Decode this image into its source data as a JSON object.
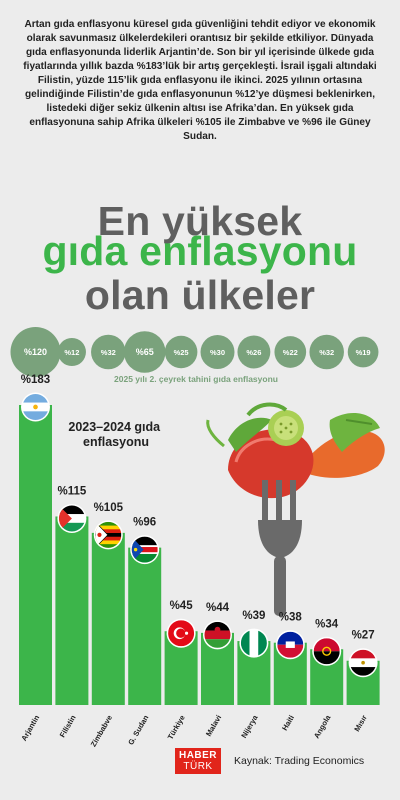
{
  "intro": "Artan gıda enflasyonu küresel gıda güvenliğini tehdit ediyor ve ekonomik olarak savunmasız ülkelerdekileri orantısız bir şekilde etkiliyor. Dünyada gıda enflasyonunda liderlik Arjantin’de. Son bir yıl içerisinde ülkede gıda fiyatlarında yıllık bazda %183’lük bir artış gerçekleşti. İsrail işgali altındaki Filistin, yüzde 115’lik gıda enflasyonu ile ikinci. 2025 yılının ortasına gelindiğinde Filistin’de gıda enflasyonunun %12’ye düşmesi beklenirken, listedeki diğer sekiz ülkenin altısı ise Afrika’dan. En yüksek gıda enflasyonuna sahip Afrika ülkeleri %105 ile Zimbabve ve %96 ile Güney Sudan.",
  "headline": {
    "line1": "En yüksek",
    "line2": "gıda enflasyonu",
    "line3": "olan ülkeler"
  },
  "colors": {
    "bar": "#3cb54a",
    "bubble": "#7aa27c",
    "headline_green": "#3cb54a",
    "headline_gray": "#5f5f5f",
    "logo": "#e1251b"
  },
  "chart_data": {
    "type": "bar",
    "title": "2023–2024 gıda enflasyonu",
    "categories": [
      "Arjantin",
      "Filistin",
      "Zimbabve",
      "G. Sudan",
      "Türkiye",
      "Malavi",
      "Nijerya",
      "Haiti",
      "Angola",
      "Mısır"
    ],
    "values": [
      183,
      115,
      105,
      96,
      45,
      44,
      39,
      38,
      34,
      27
    ],
    "value_labels": [
      "%183",
      "%115",
      "%105",
      "%96",
      "%45",
      "%44",
      "%39",
      "%38",
      "%34",
      "%27"
    ],
    "flags": [
      "argentina-flag",
      "palestine-flag",
      "zimbabwe-flag",
      "south-sudan-flag",
      "turkey-flag",
      "malawi-flag",
      "nigeria-flag",
      "haiti-flag",
      "angola-flag",
      "egypt-flag"
    ],
    "forecast": {
      "label": "2025 yılı 2. çeyrek tahini gıda enflasyonu",
      "values": [
        120,
        12,
        32,
        65,
        25,
        30,
        26,
        22,
        32,
        19
      ],
      "value_labels": [
        "%120",
        "%12",
        "%32",
        "%65",
        "%25",
        "%30",
        "%26",
        "%22",
        "%32",
        "%19"
      ]
    }
  },
  "footer": {
    "logo_line1": "HABER",
    "logo_line2": "TÜRK",
    "source": "Kaynak: Trading Economics"
  }
}
